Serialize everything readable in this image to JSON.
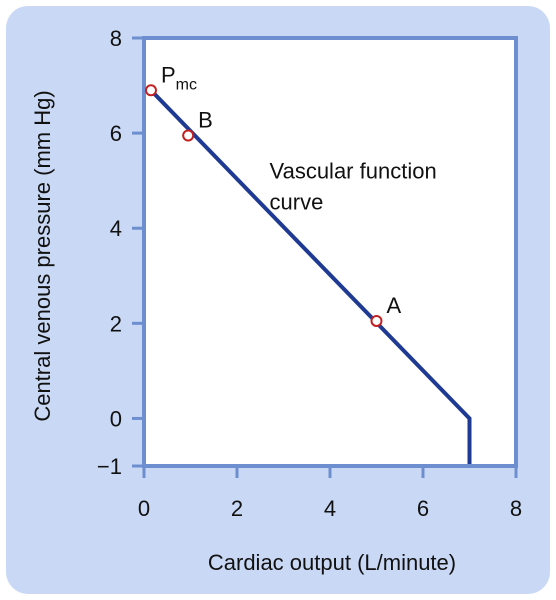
{
  "chart_data": {
    "type": "line",
    "title": "",
    "xlabel": "Cardiac output (L/minute)",
    "ylabel": "Central venous pressure (mm Hg)",
    "xlim": [
      0,
      8
    ],
    "ylim": [
      -1,
      8
    ],
    "x_ticks": [
      0,
      2,
      4,
      6,
      8
    ],
    "x_tick_labels": [
      "0",
      "2",
      "4",
      "6",
      "8"
    ],
    "y_ticks": [
      -1,
      0,
      2,
      4,
      6,
      8
    ],
    "y_tick_labels": [
      "−1",
      "0",
      "2",
      "4",
      "6",
      "8"
    ],
    "grid": false,
    "series": [
      {
        "x": [
          0.15,
          7.0,
          7.0
        ],
        "y": [
          6.9,
          0,
          -1
        ],
        "color": "#1f3a93"
      }
    ],
    "points": [
      {
        "label": "P",
        "subscript": "mc",
        "x": 0.15,
        "y": 6.9
      },
      {
        "label": "B",
        "x": 0.95,
        "y": 5.95
      },
      {
        "label": "A",
        "x": 5.0,
        "y": 2.05
      }
    ],
    "annotations": [
      {
        "lines": [
          "Vascular function",
          "curve"
        ],
        "x": 2.7,
        "y": 5.05
      }
    ]
  },
  "colors": {
    "panel_background": "#c9d8f4",
    "plot_background": "#ffffff",
    "axis_frame": "#6d8fd0",
    "curve": "#1f3a93",
    "marker_edge": "#c41f1f"
  }
}
